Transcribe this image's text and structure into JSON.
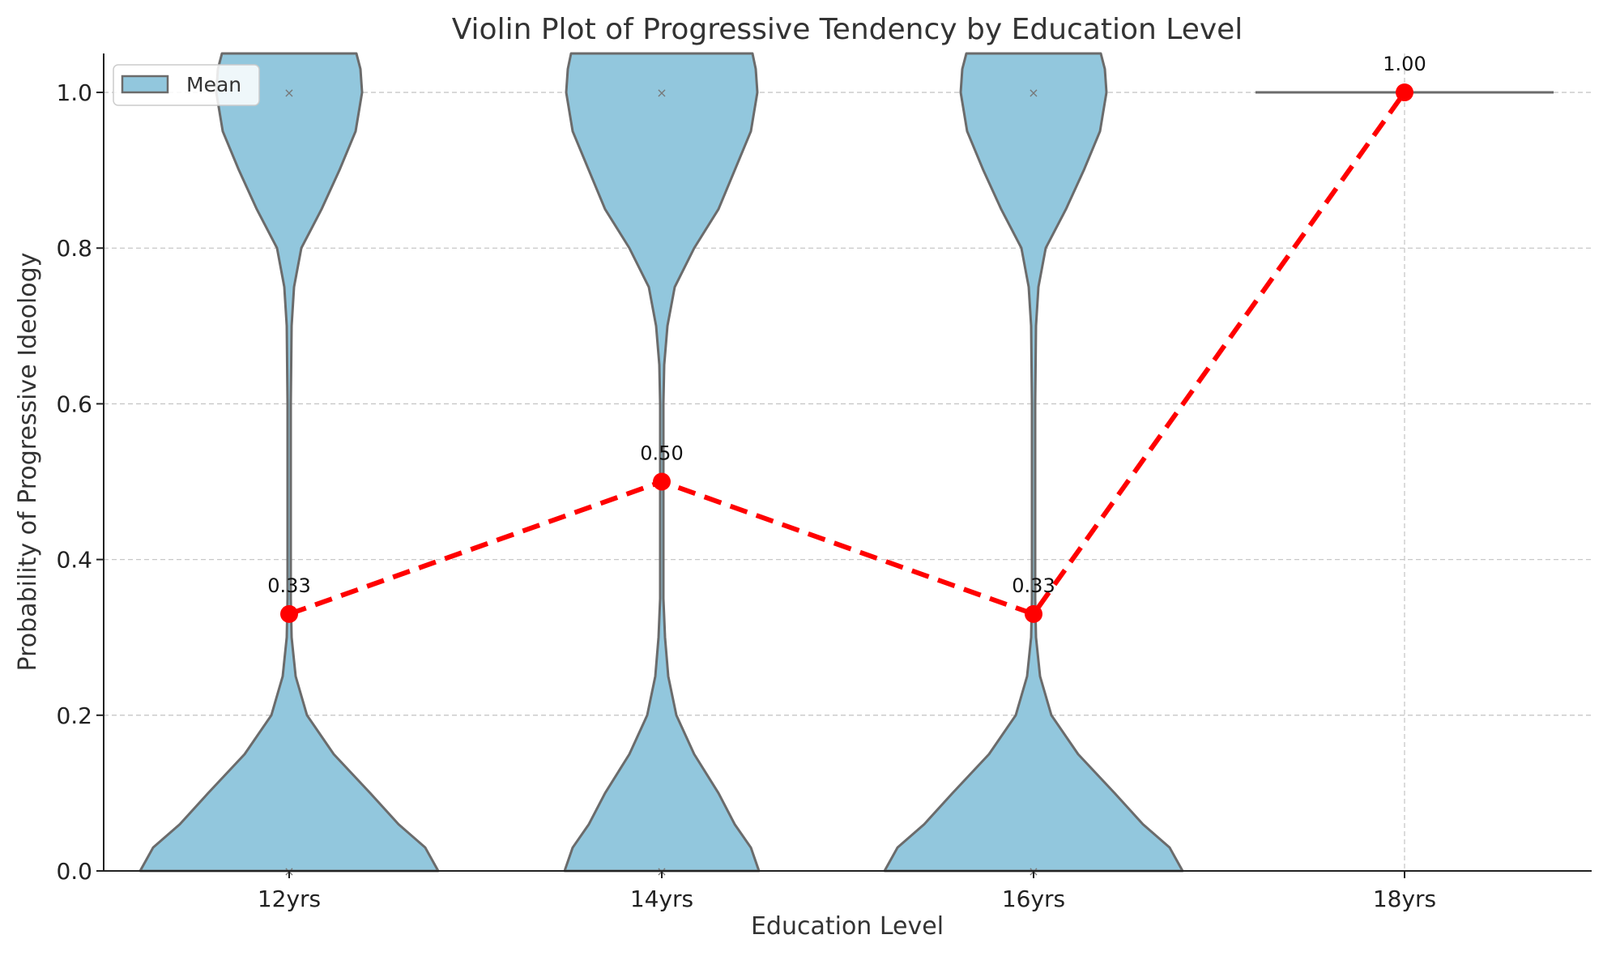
{
  "chart_data": {
    "type": "violin",
    "title": "Violin Plot of Progressive Tendency by Education Level",
    "xlabel": "Education Level",
    "ylabel": "Probability of Progressive Ideology",
    "categories": [
      "12yrs",
      "14yrs",
      "16yrs",
      "18yrs"
    ],
    "ylim": [
      0,
      1.05
    ],
    "yticks": [
      "0.0",
      "0.2",
      "0.4",
      "0.6",
      "0.8",
      "1.0"
    ],
    "grid": true,
    "legend": {
      "entries": [
        "Mean"
      ],
      "placement": "upper-left"
    },
    "violin_color": "#92c7dd",
    "violin_edge_color": "#6b6b6b",
    "violins": [
      {
        "category": "12yrs",
        "data_values": [
          0,
          1
        ],
        "distribution": "bimodal"
      },
      {
        "category": "14yrs",
        "data_values": [
          0,
          1
        ],
        "distribution": "bimodal"
      },
      {
        "category": "16yrs",
        "data_values": [
          0,
          1
        ],
        "distribution": "bimodal"
      },
      {
        "category": "18yrs",
        "data_values": [
          1
        ],
        "distribution": "single value"
      }
    ],
    "mean_series": {
      "color": "#ff0000",
      "style": "dashed",
      "values": [
        0.33,
        0.5,
        0.33,
        1.0
      ],
      "labels": [
        "0.33",
        "0.50",
        "0.33",
        "1.00"
      ]
    }
  }
}
